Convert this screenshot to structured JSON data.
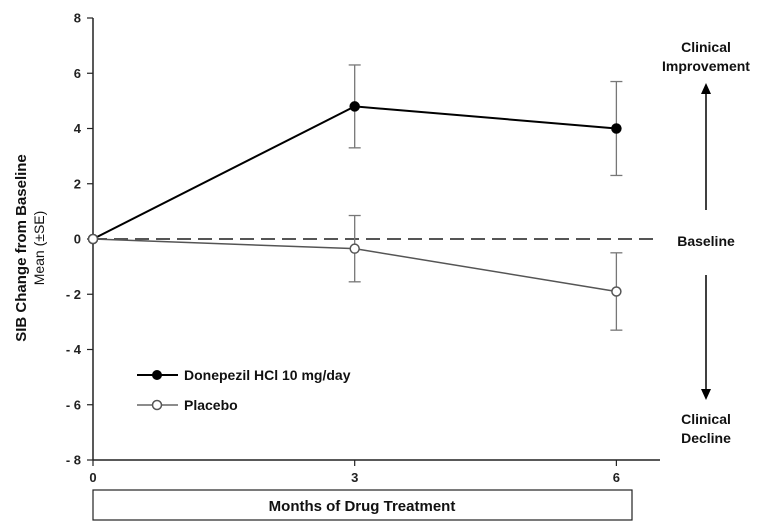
{
  "chart_data": {
    "type": "line",
    "x": [
      0,
      3,
      6
    ],
    "xticks": [
      "0",
      "3",
      "6"
    ],
    "xlim": [
      0,
      6.5
    ],
    "xlabel": "Months of Drug Treatment",
    "ylabel": "SIB Change from Baseline",
    "ylabel_sub": "Mean (±SE)",
    "ylim": [
      -8,
      8
    ],
    "yticks": [
      "8",
      "6",
      "4",
      "2",
      "0",
      "- 2",
      "- 4",
      "- 6",
      "- 8"
    ],
    "ytick_values": [
      8,
      6,
      4,
      2,
      0,
      -2,
      -4,
      -6,
      -8
    ],
    "baseline_value": 0,
    "series": [
      {
        "name": "Donepezil HCl 10 mg/day",
        "values": [
          0,
          4.8,
          4.0
        ],
        "se": [
          0,
          1.5,
          1.7
        ],
        "marker": "filled-circle",
        "color": "#000000"
      },
      {
        "name": "Placebo",
        "values": [
          0,
          -0.35,
          -1.9
        ],
        "se": [
          0,
          1.2,
          1.4
        ],
        "marker": "open-circle",
        "color": "#555555"
      }
    ],
    "annotations": {
      "improvement": [
        "Clinical",
        "Improvement"
      ],
      "baseline": "Baseline",
      "decline": [
        "Clinical",
        "Decline"
      ]
    },
    "legend_position": "bottom-left",
    "grid": false
  }
}
